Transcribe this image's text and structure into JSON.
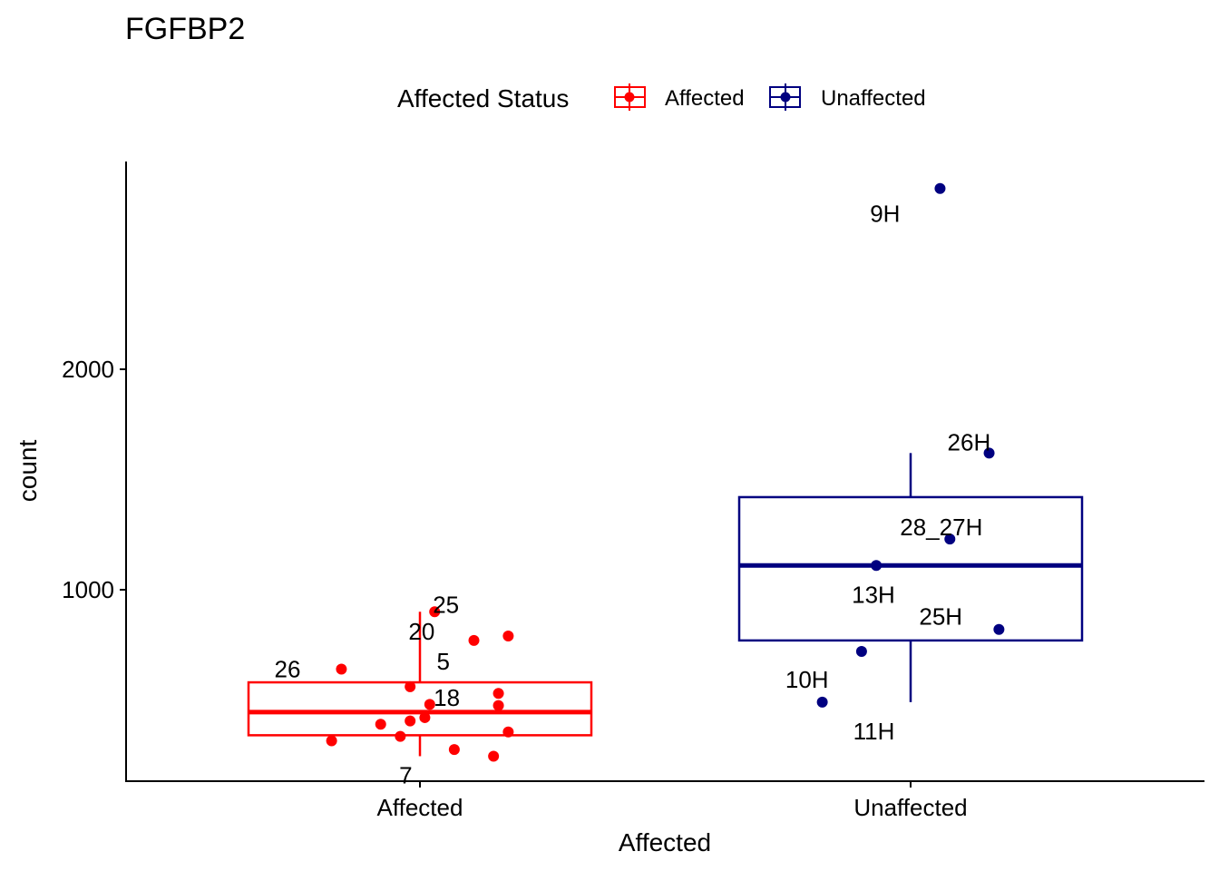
{
  "chart_data": {
    "type": "boxplot",
    "title": "FGFBP2",
    "xlabel": "Affected",
    "ylabel": "count",
    "categories": [
      "Affected",
      "Unaffected"
    ],
    "yticks": [
      1000,
      2000
    ],
    "ylim": [
      0,
      3000
    ],
    "grid": false,
    "legend": {
      "title": "Affected Status",
      "placement": "top",
      "entries": [
        "Affected",
        "Unaffected"
      ]
    },
    "series": [
      {
        "name": "Affected",
        "color": "#ff0000",
        "box": {
          "q1": 340,
          "median": 445,
          "q3": 580,
          "whisker_low": 245,
          "whisker_high": 900
        },
        "points": [
          {
            "label": "25",
            "y": 900,
            "jitter": 0.03
          },
          {
            "label": "20",
            "y": 790,
            "jitter": 0.18
          },
          {
            "label": "5",
            "y": 770,
            "jitter": 0.11
          },
          {
            "label": "26",
            "y": 640,
            "jitter": -0.16
          },
          {
            "label": "18",
            "y": 560,
            "jitter": -0.02
          },
          {
            "label": "",
            "y": 530,
            "jitter": 0.16
          },
          {
            "label": "",
            "y": 480,
            "jitter": 0.02
          },
          {
            "label": "",
            "y": 475,
            "jitter": 0.16
          },
          {
            "label": "",
            "y": 420,
            "jitter": 0.01
          },
          {
            "label": "",
            "y": 405,
            "jitter": -0.02
          },
          {
            "label": "",
            "y": 390,
            "jitter": -0.08
          },
          {
            "label": "",
            "y": 355,
            "jitter": 0.18
          },
          {
            "label": "",
            "y": 335,
            "jitter": -0.04
          },
          {
            "label": "",
            "y": 315,
            "jitter": -0.18
          },
          {
            "label": "",
            "y": 275,
            "jitter": 0.07
          },
          {
            "label": "7",
            "y": 245,
            "jitter": 0.15
          }
        ]
      },
      {
        "name": "Unaffected",
        "color": "#000080",
        "box": {
          "q1": 770,
          "median": 1110,
          "q3": 1420,
          "whisker_low": 490,
          "whisker_high": 1620
        },
        "points": [
          {
            "label": "9H",
            "y": 2820,
            "jitter": 0.06
          },
          {
            "label": "26H",
            "y": 1620,
            "jitter": 0.16
          },
          {
            "label": "28_27H",
            "y": 1230,
            "jitter": 0.08
          },
          {
            "label": "13H",
            "y": 1110,
            "jitter": -0.07
          },
          {
            "label": "25H",
            "y": 820,
            "jitter": 0.18
          },
          {
            "label": "10H",
            "y": 720,
            "jitter": -0.1
          },
          {
            "label": "11H",
            "y": 490,
            "jitter": -0.18
          }
        ]
      }
    ]
  }
}
